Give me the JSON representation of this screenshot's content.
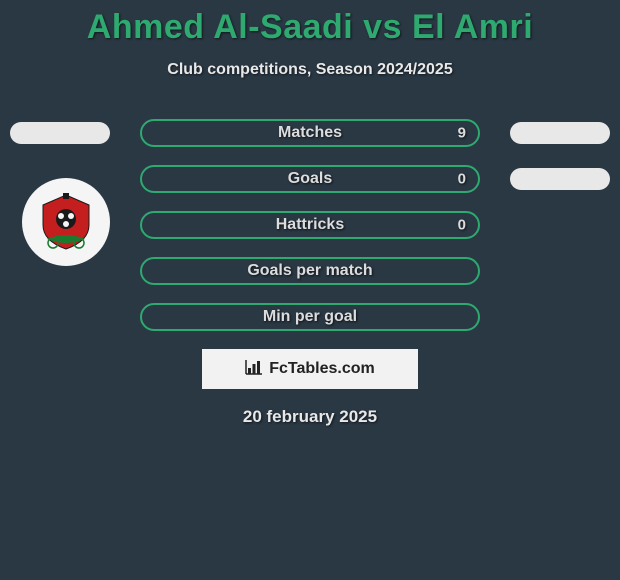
{
  "title": "Ahmed Al-Saadi vs El Amri",
  "subtitle": "Club competitions, Season 2024/2025",
  "colors": {
    "accent": "#2ea96f",
    "background": "#2a3844",
    "pill_small": "#e8e8e8",
    "text_light": "#e8e8e8",
    "stat_text": "#dcdcdc",
    "banner_bg": "#f2f2f2",
    "banner_text": "#222222"
  },
  "stats": [
    {
      "label": "Matches",
      "value": "9",
      "show_left": true,
      "show_right": true
    },
    {
      "label": "Goals",
      "value": "0",
      "show_left": false,
      "show_right": true
    },
    {
      "label": "Hattricks",
      "value": "0",
      "show_left": false,
      "show_right": false
    },
    {
      "label": "Goals per match",
      "value": "",
      "show_left": false,
      "show_right": false
    },
    {
      "label": "Min per goal",
      "value": "",
      "show_left": false,
      "show_right": false
    }
  ],
  "footer": {
    "brand": "FcTables.com",
    "date": "20 february 2025"
  },
  "logo": {
    "bg": "#f5f5f5",
    "red": "#c41e1e",
    "green": "#1a7a2e",
    "black": "#1a1a1a"
  }
}
